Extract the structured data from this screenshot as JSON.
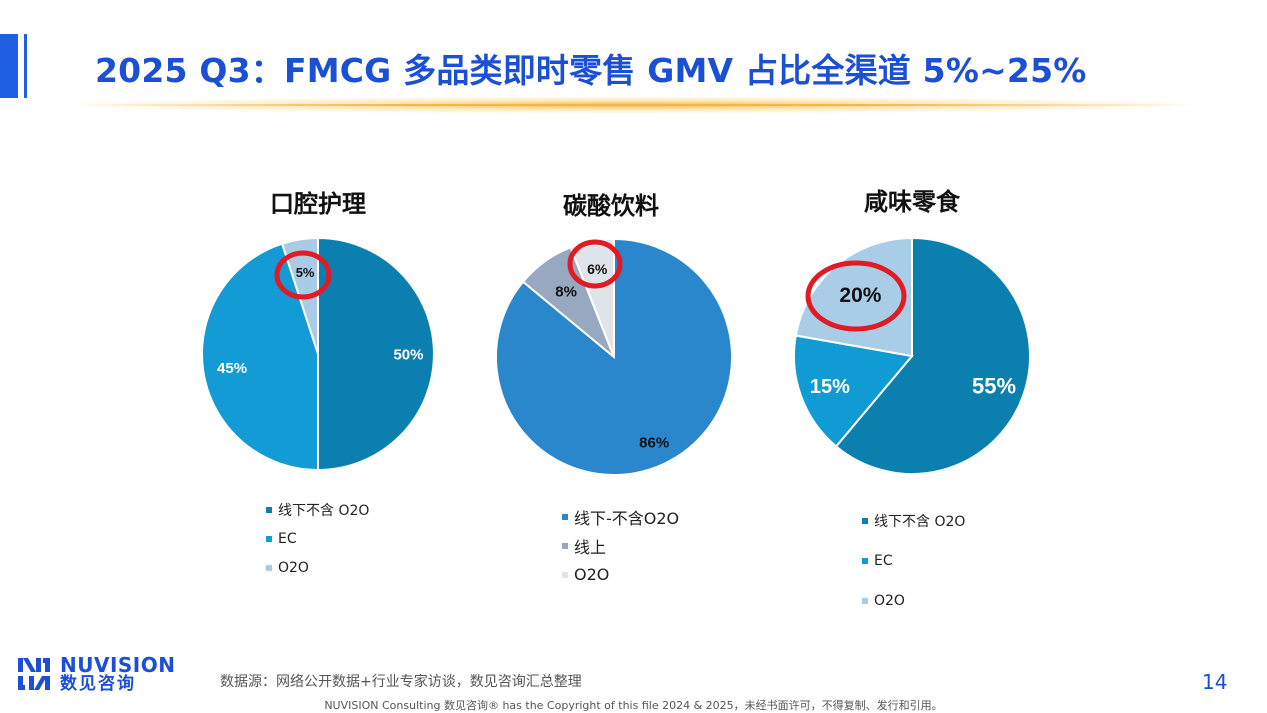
{
  "title": "2025 Q3：FMCG 多品类即时零售 GMV 占比全渠道 5%~25%",
  "colors": {
    "brand": "#1a4fd6",
    "highlight_ring": "#e01b24"
  },
  "chart_data": [
    {
      "type": "pie",
      "title": "口腔护理",
      "slices": [
        {
          "label": "线下不含 O2O",
          "value": 50,
          "value_label": "50%",
          "color": "#0b7fb0"
        },
        {
          "label": "EC",
          "value": 45,
          "value_label": "45%",
          "color": "#129bd5"
        },
        {
          "label": "O2O",
          "value": 5,
          "value_label": "5%",
          "color": "#a9cbe6",
          "highlighted": true
        }
      ],
      "legend": [
        "线下不含 O2O",
        "EC",
        "O2O"
      ]
    },
    {
      "type": "pie",
      "title": "碳酸饮料",
      "slices": [
        {
          "label": "线下-不含O2O",
          "value": 86,
          "value_label": "86%",
          "color": "#2a87cc"
        },
        {
          "label": "线上",
          "value": 8,
          "value_label": "8%",
          "color": "#97a8c0"
        },
        {
          "label": "O2O",
          "value": 6,
          "value_label": "6%",
          "color": "#dfe4ea",
          "highlighted": true
        }
      ],
      "legend": [
        "线下-不含O2O",
        "线上",
        "O2O"
      ]
    },
    {
      "type": "pie",
      "title": "咸味零食",
      "slices": [
        {
          "label": "线下不含 O2O",
          "value": 55,
          "value_label": "55%",
          "color": "#0b7fae"
        },
        {
          "label": "EC",
          "value": 15,
          "value_label": "15%",
          "color": "#119bd4"
        },
        {
          "label": "O2O",
          "value": 20,
          "value_label": "20%",
          "color": "#a9cde7",
          "highlighted": true
        }
      ],
      "legend": [
        "线下不含 O2O",
        "EC",
        "O2O"
      ]
    }
  ],
  "logo": {
    "en": "NUVISION",
    "cn": "数见咨询"
  },
  "source": "数据源：网络公开数据+行业专家访谈，数见咨询汇总整理",
  "page_number": "14",
  "copyright": "NUVISION Consulting 数见咨询® has the Copyright of this file 2024 & 2025，未经书面许可，不得复制、发行和引用。"
}
